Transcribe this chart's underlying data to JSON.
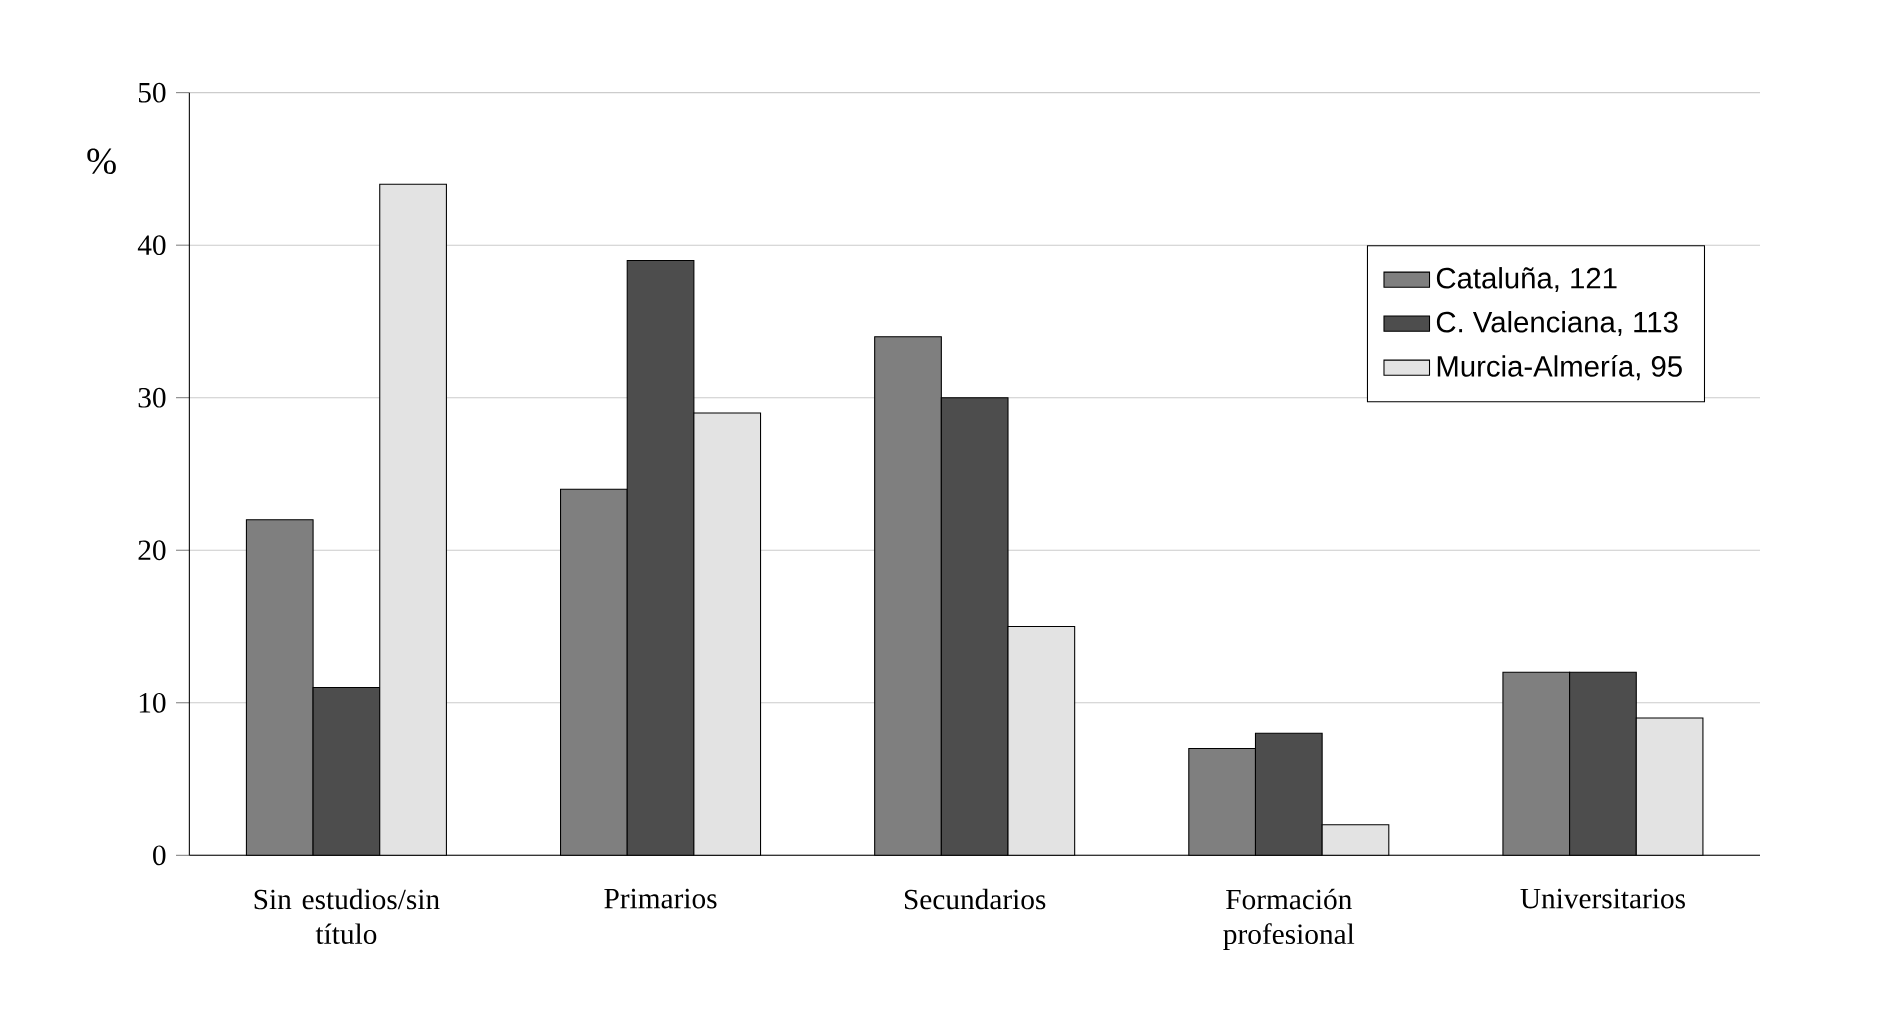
{
  "chart_data": {
    "type": "bar",
    "ylabel": "%",
    "categories": [
      "Sin estudios/sin título",
      "Primarios",
      "Secundarios",
      "Formación profesional",
      "Universitarios"
    ],
    "series": [
      {
        "name": "Cataluña, 121",
        "color": "#7f7f7f",
        "values": [
          22,
          24,
          34,
          7,
          12
        ]
      },
      {
        "name": "C. Valenciana, 113",
        "color": "#4d4d4d",
        "values": [
          11,
          39,
          30,
          8,
          12
        ]
      },
      {
        "name": "Murcia-Almería, 95",
        "color": "#e3e3e3",
        "values": [
          44,
          29,
          15,
          2,
          9
        ]
      }
    ],
    "ylim": [
      0,
      50
    ],
    "yticks": [
      0,
      10,
      20,
      30,
      40,
      50
    ],
    "grid": "y",
    "legend": "top right"
  }
}
